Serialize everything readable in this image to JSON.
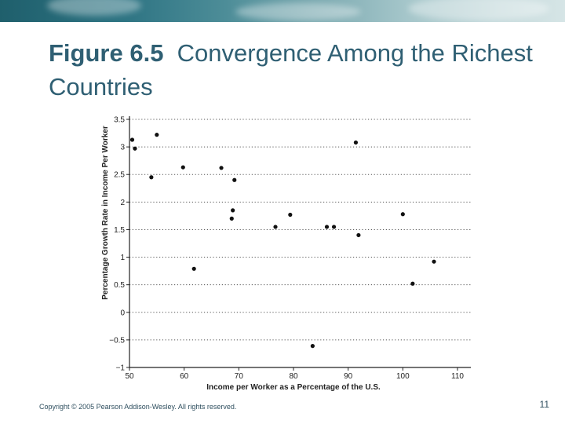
{
  "slide": {
    "title_bold": "Figure 6.5",
    "title_rest": "Convergence Among the Richest Countries",
    "footer_copyright": "Copyright © 2005 Pearson Addison-Wesley. All rights reserved.",
    "page_number": "11",
    "accent_color": "#2f5f73"
  },
  "chart_data": {
    "type": "scatter",
    "title": "",
    "xlabel": "Income per Worker as a Percentage of the U.S.",
    "ylabel": "Percentage Growth Rate in Income Per Worker",
    "xlim": [
      50,
      110
    ],
    "ylim": [
      -1,
      3.5
    ],
    "x_ticks": [
      50,
      60,
      70,
      80,
      90,
      100,
      110
    ],
    "x_tick_labels": [
      "50",
      "60",
      "70",
      "80",
      "90",
      "100",
      "110"
    ],
    "y_ticks": [
      3.5,
      3,
      2.5,
      2,
      1.5,
      1,
      0.5,
      0,
      -0.5,
      -1
    ],
    "y_tick_labels": [
      "3.5",
      "3",
      "2.5",
      "2",
      "1.5",
      "1",
      "0.5",
      "0",
      "−0.5",
      "−1"
    ],
    "grid": "horizontal-dotted",
    "points": [
      {
        "x": 50.5,
        "y": 3.13
      },
      {
        "x": 51.0,
        "y": 2.97
      },
      {
        "x": 54.0,
        "y": 2.45
      },
      {
        "x": 55.0,
        "y": 3.22
      },
      {
        "x": 59.8,
        "y": 2.63
      },
      {
        "x": 61.8,
        "y": 0.79
      },
      {
        "x": 66.8,
        "y": 2.62
      },
      {
        "x": 68.7,
        "y": 1.7
      },
      {
        "x": 68.9,
        "y": 1.85
      },
      {
        "x": 69.2,
        "y": 2.4
      },
      {
        "x": 76.7,
        "y": 1.55
      },
      {
        "x": 79.4,
        "y": 1.77
      },
      {
        "x": 83.5,
        "y": -0.61
      },
      {
        "x": 86.1,
        "y": 1.55
      },
      {
        "x": 87.4,
        "y": 1.55
      },
      {
        "x": 91.4,
        "y": 3.08
      },
      {
        "x": 91.9,
        "y": 1.4
      },
      {
        "x": 100.0,
        "y": 1.78
      },
      {
        "x": 101.8,
        "y": 0.52
      },
      {
        "x": 105.7,
        "y": 0.92
      }
    ]
  }
}
